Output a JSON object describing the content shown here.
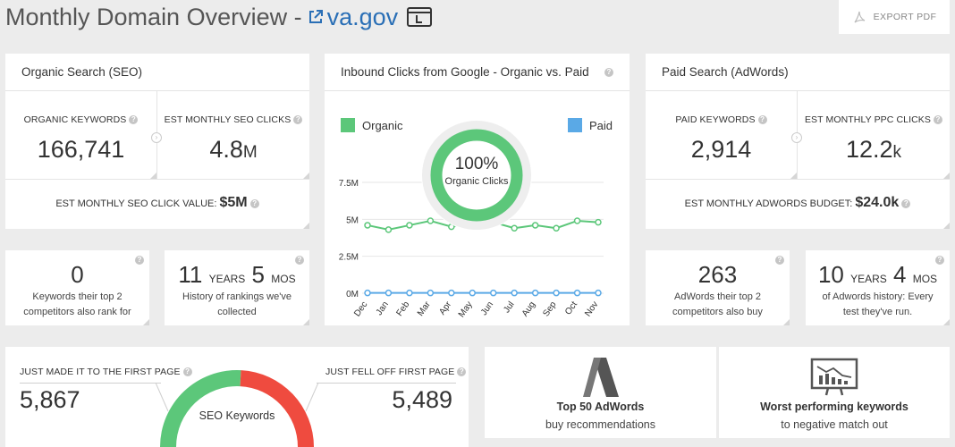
{
  "header": {
    "title": "Monthly Domain Overview -",
    "domain": "va.gov",
    "export_label": "EXPORT PDF"
  },
  "seo": {
    "heading": "Organic Search (SEO)",
    "keywords_label": "ORGANIC KEYWORDS",
    "keywords_value": "166,741",
    "clicks_label": "EST MONTHLY SEO CLICKS",
    "clicks_value": "4.8",
    "clicks_unit": "M",
    "value_label": "EST MONTHLY SEO CLICK VALUE:",
    "value_amount": "$5M"
  },
  "paid": {
    "heading": "Paid Search (AdWords)",
    "keywords_label": "PAID KEYWORDS",
    "keywords_value": "2,914",
    "clicks_label": "EST MONTHLY PPC CLICKS",
    "clicks_value": "12.2",
    "clicks_unit": "k",
    "budget_label": "EST MONTHLY ADWORDS BUDGET:",
    "budget_amount": "$24.0k"
  },
  "inbound": {
    "heading": "Inbound Clicks from Google - Organic vs. Paid",
    "legend_organic": "Organic",
    "legend_paid": "Paid",
    "donut_pct": "100%",
    "donut_label": "Organic Clicks"
  },
  "chart_data": {
    "type": "line",
    "categories": [
      "Dec",
      "Jan",
      "Feb",
      "Mar",
      "Apr",
      "May",
      "Jun",
      "Jul",
      "Aug",
      "Sep",
      "Oct",
      "Nov"
    ],
    "y_ticks": [
      "0M",
      "2.5M",
      "5M",
      "7.5M"
    ],
    "ylim": [
      0,
      7500000
    ],
    "series": [
      {
        "name": "Organic",
        "color": "#5cc77a",
        "values": [
          4.6,
          4.3,
          4.6,
          4.9,
          4.5,
          4.8,
          4.8,
          4.4,
          4.6,
          4.4,
          4.9,
          4.8
        ]
      },
      {
        "name": "Paid",
        "color": "#5aa9e6",
        "values": [
          0.02,
          0.02,
          0.02,
          0.02,
          0.02,
          0.02,
          0.02,
          0.02,
          0.02,
          0.02,
          0.02,
          0.02
        ]
      }
    ],
    "donut_organic_fraction": 1.0
  },
  "stats": {
    "competitors_value": "0",
    "competitors_text_1": "Keywords their top 2",
    "competitors_text_2": "competitors also rank for",
    "history_years": "11",
    "history_years_unit": "YEARS",
    "history_mos": "5",
    "history_mos_unit": "MOS",
    "history_text_1": "History of rankings we've",
    "history_text_2": "collected",
    "adwords_comp_value": "263",
    "adwords_comp_text_1": "AdWords their top 2",
    "adwords_comp_text_2": "competitors also buy",
    "adwords_hist_years": "10",
    "adwords_hist_years_unit": "YEARS",
    "adwords_hist_mos": "4",
    "adwords_hist_mos_unit": "MOS",
    "adwords_hist_text_1": "of Adwords history: Every",
    "adwords_hist_text_2": "test they've run."
  },
  "first_page": {
    "made_label": "JUST MADE IT TO THE FIRST PAGE",
    "made_value": "5,867",
    "fell_label": "JUST FELL OFF FIRST PAGE",
    "fell_value": "5,489",
    "gauge_label": "SEO Keywords",
    "gain_color": "#5cc77a",
    "loss_color": "#ef4b3f"
  },
  "tiles": {
    "adwords_title": "Top 50 AdWords",
    "adwords_sub": "buy recommendations",
    "worst_title": "Worst performing keywords",
    "worst_sub": "to negative match out"
  }
}
